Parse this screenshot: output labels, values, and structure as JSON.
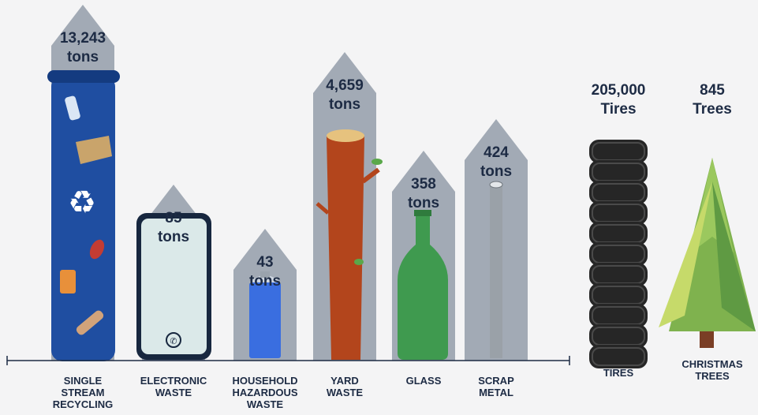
{
  "chart_data": [
    {
      "type": "bar",
      "categories": [
        "SINGLE STREAM RECYCLING",
        "ELECTRONIC WASTE",
        "HOUSEHOLD HAZARDOUS WASTE",
        "YARD WASTE",
        "GLASS",
        "SCRAP METAL"
      ],
      "series": [
        {
          "values": [
            13243,
            85,
            43,
            4659,
            358,
            424
          ],
          "value_labels": [
            "13,243",
            "85",
            "43",
            "4,659",
            "358",
            "424"
          ],
          "unit": "tons"
        }
      ],
      "colors": {
        "bar": "#a2aab5",
        "text": "#1d2b44",
        "axis": "#1d2b44"
      }
    },
    {
      "type": "table",
      "items": [
        {
          "label": "TIRES",
          "value": 205000,
          "value_label": "205,000",
          "unit": "Tires",
          "icon": "tire-stack-icon"
        },
        {
          "label": "CHRISTMAS TREES",
          "value": 845,
          "value_label": "845",
          "unit": "Trees",
          "icon": "christmas-tree-icon"
        }
      ]
    }
  ]
}
